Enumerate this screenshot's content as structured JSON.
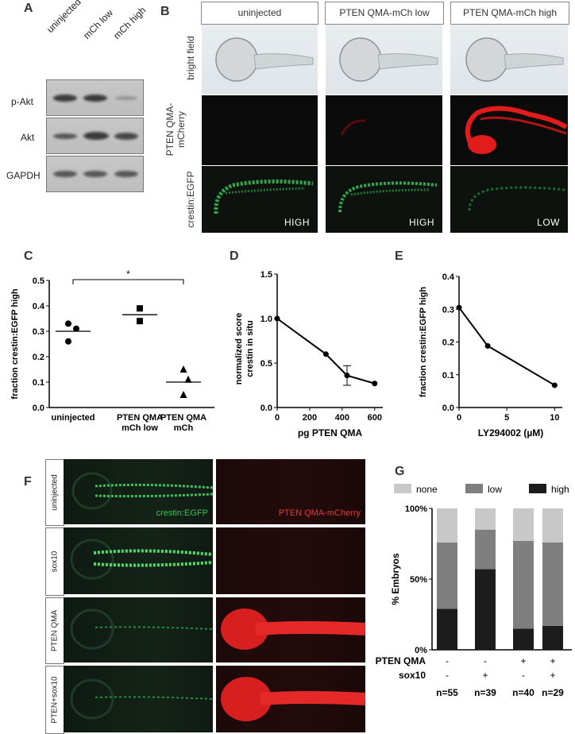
{
  "panels": {
    "A": {
      "letter": "A",
      "columns": [
        "uninjected",
        "mCh low",
        "mCh high"
      ],
      "rows": [
        "p-Akt",
        "Akt",
        "GAPDH"
      ]
    },
    "B": {
      "letter": "B",
      "columns": [
        "uninjected",
        "PTEN QMA-mCh low",
        "PTEN QMA-mCh high"
      ],
      "rows": [
        "bright field",
        "PTEN QMA-\nmCherry",
        "crestin:EGFP"
      ],
      "row_label_line1": "PTEN QMA-",
      "row_label_line2": "mCherry",
      "cell_notes": [
        "HIGH",
        "HIGH",
        "LOW"
      ]
    },
    "F": {
      "letter": "F",
      "rows": [
        "uninjected",
        "sox10",
        "PTEN QMA",
        "PTEN+sox10"
      ],
      "channel_green": "crestin:EGFP",
      "channel_red": "PTEN QMA-mCherry"
    }
  },
  "chart_data": [
    {
      "panel": "C",
      "type": "scatter",
      "ylabel": "fraction crestin:EGFP high",
      "yticks": [
        "0.0",
        "0.1",
        "0.2",
        "0.3",
        "0.4",
        "0.5"
      ],
      "ylim": [
        0,
        0.5
      ],
      "categories": [
        {
          "line1": "uninjected",
          "line2": ""
        },
        {
          "line1": "PTEN QMA",
          "line2": "mCh low"
        },
        {
          "line1": "PTEN QMA",
          "line2": "mCh"
        }
      ],
      "groups": [
        {
          "marker": "circle",
          "values": [
            0.33,
            0.31,
            0.26
          ],
          "mean": 0.3
        },
        {
          "marker": "square",
          "values": [
            0.39,
            0.34
          ],
          "mean": 0.365
        },
        {
          "marker": "triangle",
          "values": [
            0.15,
            0.11,
            0.05
          ],
          "mean": 0.1
        }
      ],
      "significance": "*"
    },
    {
      "panel": "D",
      "type": "line",
      "xlabel": "pg PTEN QMA",
      "ylabel_line1": "normalized score",
      "ylabel_line2": "crestin in situ",
      "xticks": [
        "0",
        "200",
        "400",
        "600"
      ],
      "yticks": [
        "0.0",
        "0.5",
        "1.0",
        "1.5"
      ],
      "xlim": [
        0,
        650
      ],
      "ylim": [
        0,
        1.5
      ],
      "x": [
        0,
        300,
        430,
        600
      ],
      "y": [
        1.0,
        0.6,
        0.36,
        0.27
      ],
      "errors": [
        0,
        0,
        0.11,
        0
      ]
    },
    {
      "panel": "E",
      "type": "line",
      "xlabel": "LY294002 (µM)",
      "ylabel": "fraction crestin:EGFP high",
      "xticks": [
        "0",
        "5",
        "10"
      ],
      "yticks": [
        "0.0",
        "0.1",
        "0.2",
        "0.3",
        "0.4"
      ],
      "xlim": [
        0,
        10.8
      ],
      "ylim": [
        0,
        0.4
      ],
      "x": [
        0,
        3,
        10
      ],
      "y": [
        0.305,
        0.188,
        0.068
      ]
    },
    {
      "panel": "G",
      "type": "bar",
      "stacked": true,
      "ylabel": "% Embryos",
      "yticks": [
        "0%",
        "50%",
        "100%"
      ],
      "ylim": [
        0,
        100
      ],
      "legend": [
        {
          "name": "none",
          "color": "#c8c8c8"
        },
        {
          "name": "low",
          "color": "#7f7f7f"
        },
        {
          "name": "high",
          "color": "#1c1c1c"
        }
      ],
      "series": [
        {
          "name": "high",
          "values": [
            29,
            57,
            15,
            17
          ]
        },
        {
          "name": "low",
          "values": [
            47,
            28,
            62,
            59
          ]
        },
        {
          "name": "none",
          "values": [
            24,
            15,
            23,
            24
          ]
        }
      ],
      "row_labels": [
        "PTEN QMA",
        "sox10"
      ],
      "pten": [
        "-",
        "-",
        "+",
        "+"
      ],
      "sox10": [
        "-",
        "+",
        "-",
        "+"
      ],
      "n": [
        "n=55",
        "n=39",
        "n=40",
        "n=29"
      ]
    }
  ]
}
